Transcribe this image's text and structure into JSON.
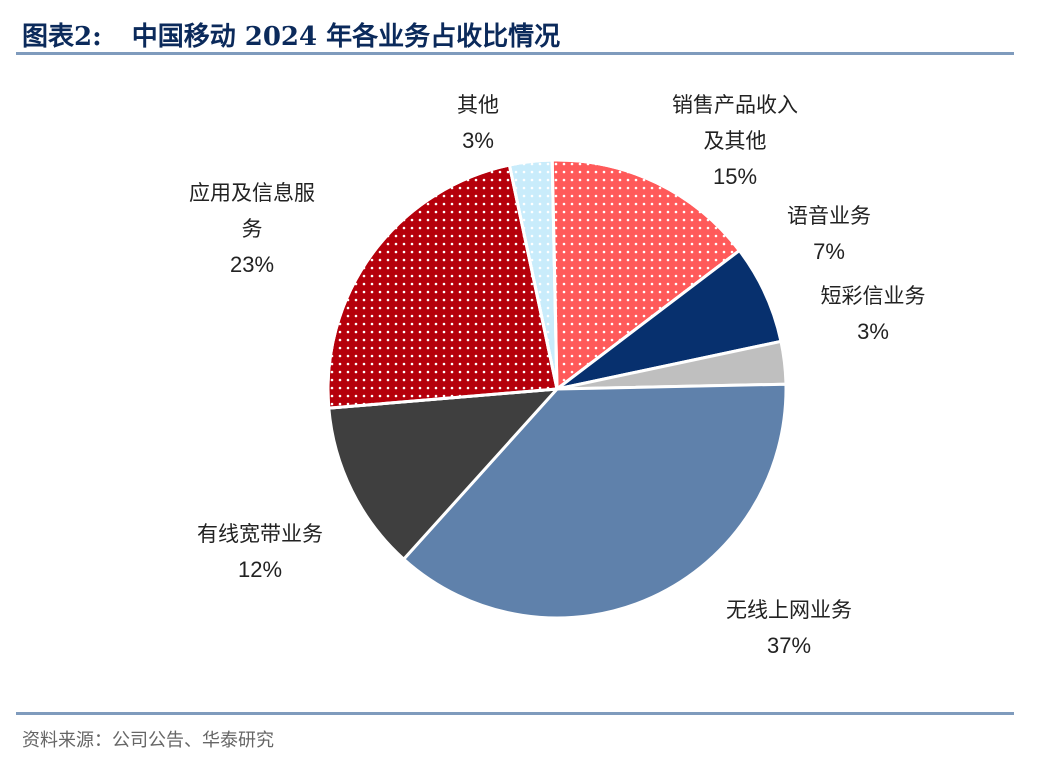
{
  "header": {
    "figure_label": "图表2:",
    "title": "中国移动 2024 年各业务占收比情况"
  },
  "footer": {
    "source": "资料来源：公司公告、华泰研究"
  },
  "chart_data": {
    "type": "pie",
    "title": "中国移动 2024 年各业务占收比情况",
    "slices": [
      {
        "label": [
          "其他"
        ],
        "value": 3,
        "pct": "3%",
        "color": "#c9ecfb",
        "pattern": "dots-blue"
      },
      {
        "label": [
          "销售产品收入",
          "及其他"
        ],
        "value": 15,
        "pct": "15%",
        "color": "#ff5a5a",
        "pattern": "dots-white"
      },
      {
        "label": [
          "语音业务"
        ],
        "value": 7,
        "pct": "7%",
        "color": "#07306e",
        "pattern": "none"
      },
      {
        "label": [
          "短彩信业务"
        ],
        "value": 3,
        "pct": "3%",
        "color": "#bfbfbf",
        "pattern": "none"
      },
      {
        "label": [
          "无线上网业务"
        ],
        "value": 37,
        "pct": "37%",
        "color": "#5f81ab",
        "pattern": "none"
      },
      {
        "label": [
          "有线宽带业务"
        ],
        "value": 12,
        "pct": "12%",
        "color": "#3f3f3f",
        "pattern": "none"
      },
      {
        "label": [
          "应用及信息服",
          "务"
        ],
        "value": 23,
        "pct": "23%",
        "color": "#b5000b",
        "pattern": "dots-white"
      }
    ]
  }
}
